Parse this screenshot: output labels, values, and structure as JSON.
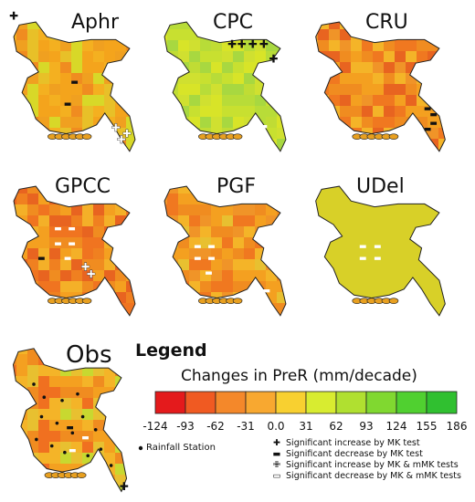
{
  "panels": [
    {
      "id": "aphr",
      "title": "Aphr",
      "palette": [
        "#f0a020",
        "#f4b020",
        "#e8c028",
        "#f08c20",
        "#d8d828",
        "#f4a41c"
      ],
      "markers": [
        {
          "t": "plus",
          "x": 0.06,
          "y": 0.06
        },
        {
          "t": "minus",
          "x": 0.5,
          "y": 0.5
        },
        {
          "t": "minus",
          "x": 0.45,
          "y": 0.65
        },
        {
          "t": "oplus",
          "x": 0.8,
          "y": 0.82
        },
        {
          "t": "oplus",
          "x": 0.88,
          "y": 0.86
        },
        {
          "t": "oplus",
          "x": 0.84,
          "y": 0.9
        }
      ]
    },
    {
      "id": "cpc",
      "title": "CPC",
      "palette": [
        "#c8e030",
        "#b8dc38",
        "#d8e428",
        "#a8d840",
        "#d0e030",
        "#c0dc34"
      ],
      "markers": [
        {
          "t": "plus",
          "x": 0.55,
          "y": 0.25
        },
        {
          "t": "plus",
          "x": 0.62,
          "y": 0.25
        },
        {
          "t": "plus",
          "x": 0.7,
          "y": 0.25
        },
        {
          "t": "plus",
          "x": 0.78,
          "y": 0.25
        },
        {
          "t": "plus",
          "x": 0.85,
          "y": 0.35
        },
        {
          "t": "omin",
          "x": 0.7,
          "y": 0.78
        },
        {
          "t": "omin",
          "x": 0.78,
          "y": 0.8
        }
      ]
    },
    {
      "id": "cru",
      "title": "CRU",
      "palette": [
        "#f08c20",
        "#f4a020",
        "#f07820",
        "#f4b428",
        "#e86420",
        "#f09428"
      ],
      "markers": [
        {
          "t": "minus",
          "x": 0.82,
          "y": 0.68
        },
        {
          "t": "minus",
          "x": 0.86,
          "y": 0.72
        },
        {
          "t": "minus",
          "x": 0.86,
          "y": 0.78
        },
        {
          "t": "minus",
          "x": 0.82,
          "y": 0.82
        }
      ]
    },
    {
      "id": "gpcc",
      "title": "GPCC",
      "palette": [
        "#f08c20",
        "#f07420",
        "#f4a020",
        "#e86420",
        "#f4b028",
        "#f08020"
      ],
      "markers": [
        {
          "t": "omin",
          "x": 0.38,
          "y": 0.38
        },
        {
          "t": "omin",
          "x": 0.48,
          "y": 0.38
        },
        {
          "t": "omin",
          "x": 0.38,
          "y": 0.48
        },
        {
          "t": "omin",
          "x": 0.48,
          "y": 0.48
        },
        {
          "t": "minus",
          "x": 0.26,
          "y": 0.58
        },
        {
          "t": "omin",
          "x": 0.45,
          "y": 0.58
        },
        {
          "t": "oplus",
          "x": 0.58,
          "y": 0.65
        },
        {
          "t": "oplus",
          "x": 0.62,
          "y": 0.7
        }
      ]
    },
    {
      "id": "pgf",
      "title": "PGF",
      "palette": [
        "#f08c20",
        "#f4a020",
        "#f07820",
        "#f4b428",
        "#f09428",
        "#e8c030"
      ],
      "markers": [
        {
          "t": "omin",
          "x": 0.3,
          "y": 0.5
        },
        {
          "t": "omin",
          "x": 0.4,
          "y": 0.5
        },
        {
          "t": "omin",
          "x": 0.3,
          "y": 0.58
        },
        {
          "t": "omin",
          "x": 0.4,
          "y": 0.58
        },
        {
          "t": "omin",
          "x": 0.38,
          "y": 0.68
        },
        {
          "t": "omin",
          "x": 0.8,
          "y": 0.8
        }
      ]
    },
    {
      "id": "udel",
      "title": "UDel",
      "palette": [
        "#f08c20",
        "#f4a020",
        "#f4b428",
        "#e86420",
        "#f09428",
        "#d8d028"
      ],
      "markers": [
        {
          "t": "omin",
          "x": 0.38,
          "y": 0.5
        },
        {
          "t": "omin",
          "x": 0.48,
          "y": 0.5
        },
        {
          "t": "omin",
          "x": 0.38,
          "y": 0.58
        },
        {
          "t": "omin",
          "x": 0.48,
          "y": 0.58
        }
      ]
    },
    {
      "id": "obs",
      "title": "Obs",
      "palette": [
        "#f08c20",
        "#f4a020",
        "#f07020",
        "#f4b428",
        "#e8c030",
        "#c8d830"
      ],
      "markers": [
        {
          "t": "minus",
          "x": 0.5,
          "y": 0.58
        },
        {
          "t": "omin",
          "x": 0.62,
          "y": 0.64
        },
        {
          "t": "omin",
          "x": 0.52,
          "y": 0.72
        },
        {
          "t": "plus",
          "x": 0.92,
          "y": 0.95
        }
      ]
    }
  ],
  "legend": {
    "title": "Legend",
    "units": "Changes in PreR (mm/decade)",
    "colors": [
      "#e41a1c",
      "#f05a22",
      "#f4882a",
      "#f8a830",
      "#f8d030",
      "#d8ec30",
      "#b0e030",
      "#80d830",
      "#50d030",
      "#30c030"
    ],
    "ticks": [
      "-124",
      "-93",
      "-62",
      "-31",
      "0.0",
      "31",
      "62",
      "93",
      "124",
      "155",
      "186"
    ],
    "station_label": "Rainfall Station",
    "symbols": [
      {
        "name": "plus",
        "label": "Significant increase by MK test"
      },
      {
        "name": "minus",
        "label": "Significant decrease by MK test"
      },
      {
        "name": "oplus",
        "label": "Significant increase by MK & mMK tests"
      },
      {
        "name": "omin",
        "label": "Significant decrease by MK & mMK tests"
      }
    ]
  }
}
